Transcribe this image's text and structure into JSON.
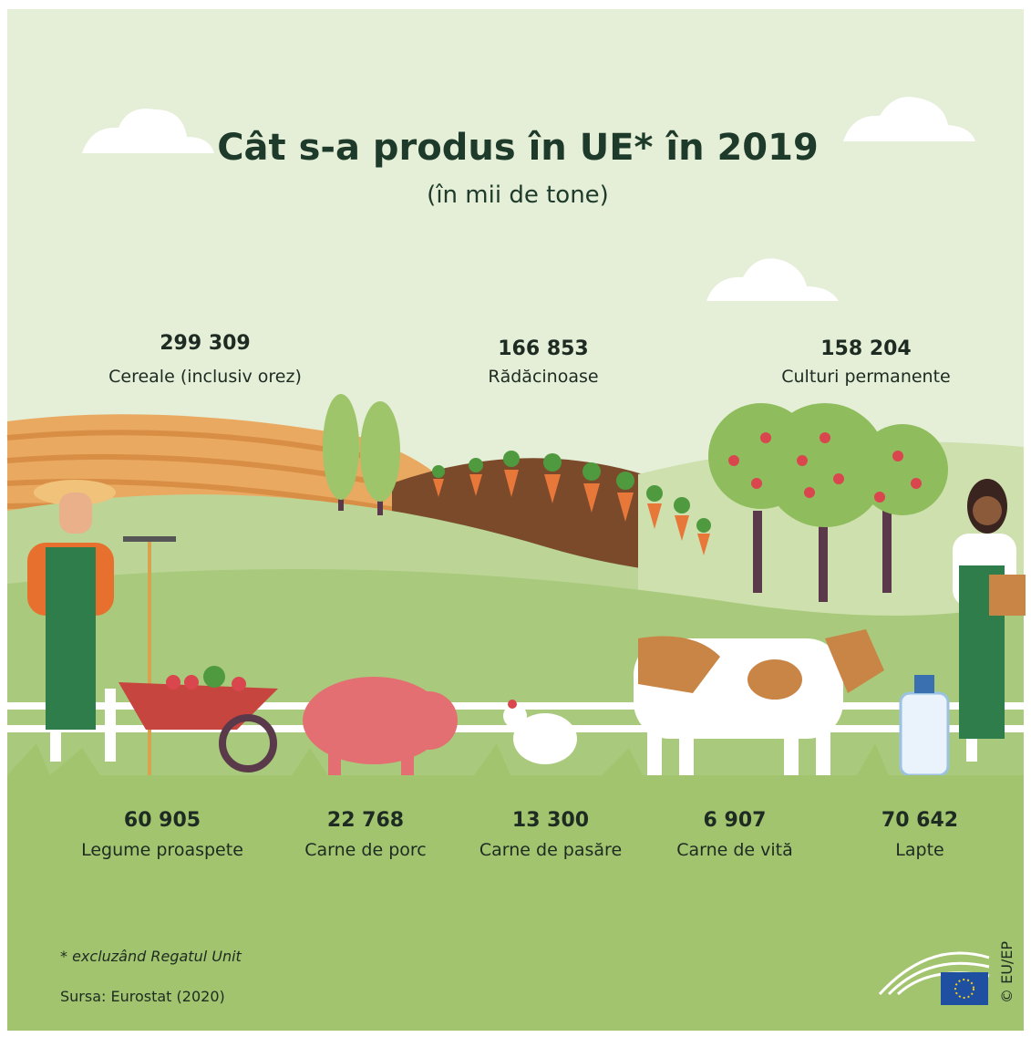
{
  "header": {
    "title": "Cât s-a produs în UE* în 2019",
    "subtitle": "(în mii de tone)"
  },
  "top_items": [
    {
      "value": "299 309",
      "label": "Cereale (inclusiv orez)"
    },
    {
      "value": "166 853",
      "label": "Rădăcinoase"
    },
    {
      "value": "158 204",
      "label": "Culturi permanente"
    }
  ],
  "bottom_items": [
    {
      "value": "60 905",
      "label": "Legume proaspete"
    },
    {
      "value": "22 768",
      "label": "Carne de porc"
    },
    {
      "value": "13 300",
      "label": "Carne de pasăre"
    },
    {
      "value": "6 907",
      "label": "Carne de vită"
    },
    {
      "value": "70 642",
      "label": "Lapte"
    }
  ],
  "footnote": "* excluzând Regatul Unit",
  "source": "Sursa: Eurostat (2020)",
  "credit": "© EU/EP"
}
